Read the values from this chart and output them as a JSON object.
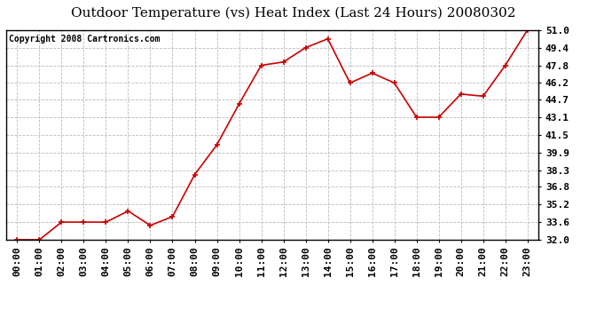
{
  "title": "Outdoor Temperature (vs) Heat Index (Last 24 Hours) 20080302",
  "copyright": "Copyright 2008 Cartronics.com",
  "x_labels": [
    "00:00",
    "01:00",
    "02:00",
    "03:00",
    "04:00",
    "05:00",
    "06:00",
    "07:00",
    "08:00",
    "09:00",
    "10:00",
    "11:00",
    "12:00",
    "13:00",
    "14:00",
    "15:00",
    "16:00",
    "17:00",
    "18:00",
    "19:00",
    "20:00",
    "21:00",
    "22:00",
    "23:00"
  ],
  "y_values": [
    32.0,
    32.0,
    33.6,
    33.6,
    33.6,
    34.6,
    33.3,
    34.1,
    37.9,
    40.6,
    44.3,
    47.8,
    48.1,
    49.4,
    50.2,
    46.2,
    47.1,
    46.2,
    43.1,
    43.1,
    45.2,
    45.0,
    47.8,
    51.0
  ],
  "line_color": "#cc0000",
  "marker": "+",
  "marker_size": 5,
  "background_color": "#ffffff",
  "plot_bg_color": "#ffffff",
  "grid_color": "#bbbbbb",
  "title_fontsize": 11,
  "copyright_fontsize": 7,
  "tick_fontsize": 8,
  "ylim": [
    32.0,
    51.0
  ],
  "yticks": [
    32.0,
    33.6,
    35.2,
    36.8,
    38.3,
    39.9,
    41.5,
    43.1,
    44.7,
    46.2,
    47.8,
    49.4,
    51.0
  ]
}
